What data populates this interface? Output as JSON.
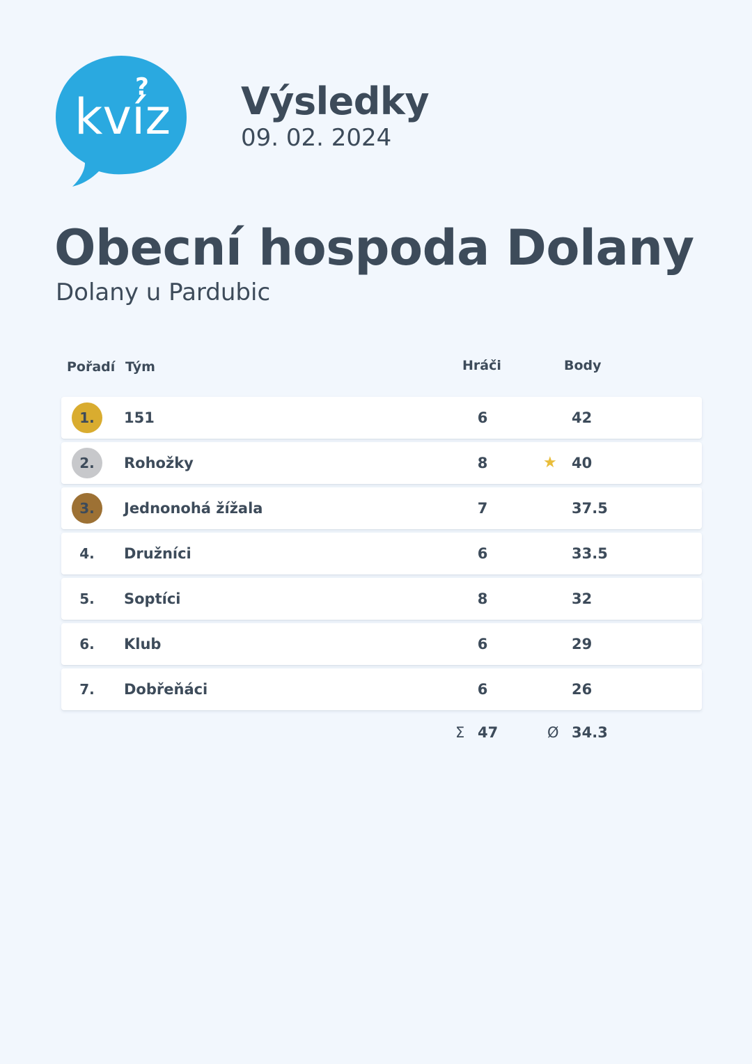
{
  "logo": {
    "text": "kvíz",
    "color": "#2aa9e0"
  },
  "header": {
    "title": "Výsledky",
    "date": "09. 02. 2024"
  },
  "venue": {
    "name": "Obecní hospoda Dolany",
    "city": "Dolany u Pardubic"
  },
  "table": {
    "columns": {
      "rank": "Pořadí",
      "team": "Tým",
      "players": "Hráči",
      "points": "Body"
    },
    "rows": [
      {
        "rank": "1.",
        "team": "151",
        "players": "6",
        "points": "42",
        "medal": "gold"
      },
      {
        "rank": "2.",
        "team": "Rohožky",
        "players": "8",
        "points": "40",
        "medal": "silver",
        "star": "★"
      },
      {
        "rank": "3.",
        "team": "Jednonohá žížala",
        "players": "7",
        "points": "37.5",
        "medal": "bronze"
      },
      {
        "rank": "4.",
        "team": "Družníci",
        "players": "6",
        "points": "33.5"
      },
      {
        "rank": "5.",
        "team": "Soptíci",
        "players": "8",
        "points": "32"
      },
      {
        "rank": "6.",
        "team": "Klub",
        "players": "6",
        "points": "29"
      },
      {
        "rank": "7.",
        "team": "Dobřeňáci",
        "players": "6",
        "points": "26"
      }
    ],
    "summary": {
      "players_symbol": "Σ",
      "players_total": "47",
      "points_symbol": "Ø",
      "points_average": "34.3"
    }
  },
  "colors": {
    "background": "#f2f7fd",
    "text": "#3d4b5a",
    "gold": "#d9ac2f",
    "silver": "#c7c8cb",
    "bronze": "#9d7134",
    "star": "#e9bd3a"
  }
}
